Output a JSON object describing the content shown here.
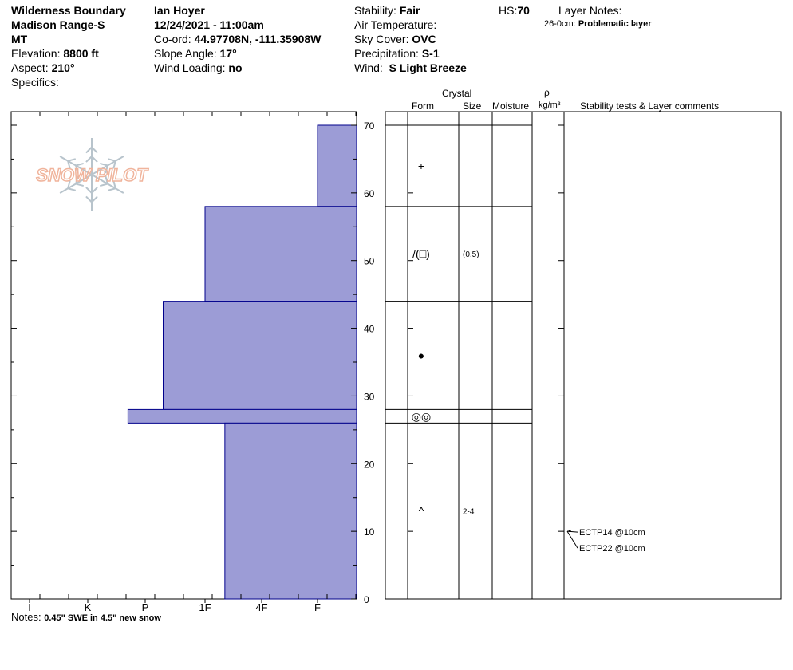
{
  "site": {
    "name": "Wilderness Boundary",
    "range": "Madison Range-S",
    "state": "MT",
    "elevation_label": "Elevation:",
    "elevation": "8800 ft",
    "aspect_label": "Aspect:",
    "aspect": "210°",
    "specifics_label": "Specifics:"
  },
  "observation": {
    "observer": "Ian Hoyer",
    "datetime": "12/24/2021 - 11:00am",
    "coord_label": "Co-ord:",
    "coord": "44.97708N, -111.35908W",
    "slope_label": "Slope Angle:",
    "slope": "17°",
    "wind_loading_label": "Wind Loading:",
    "wind_loading": "no"
  },
  "conditions": {
    "stability_label": "Stability:",
    "stability": "Fair",
    "air_temp_label": "Air Temperature:",
    "sky_label": "Sky Cover:",
    "sky": "OVC",
    "precip_label": "Precipitation:",
    "precip": "S-1",
    "wind_label": "Wind:",
    "wind": "S Light Breeze"
  },
  "hs": {
    "label": "HS:",
    "value": "70"
  },
  "layer_notes": {
    "title": "Layer Notes:",
    "range": "26-0cm:",
    "text": "Problematic layer"
  },
  "column_headers": {
    "crystal": "Crystal",
    "form": "Form",
    "size": "Size",
    "moisture": "Moisture",
    "rho": "ρ",
    "density_unit": "kg/m³",
    "tests": "Stability tests & Layer comments"
  },
  "notes": {
    "label": "Notes:",
    "text": "0.45\" SWE in 4.5\" new snow"
  },
  "logo": {
    "text": "SNOW PILOT"
  },
  "colors": {
    "hardness_fill": "#9c9cd6",
    "hardness_stroke": "#00008b",
    "logo_text": "#f0b49c",
    "logo_flake": "#b8c4cc"
  },
  "chart_data": {
    "type": "bar",
    "y_axis": {
      "unit": "cm",
      "range": [
        0,
        70
      ],
      "ticks": [
        0,
        10,
        20,
        30,
        40,
        50,
        60,
        70
      ]
    },
    "hardness_scale": [
      "I",
      "K",
      "P",
      "1F",
      "4F",
      "F"
    ],
    "layers": [
      {
        "top": 70,
        "bottom": 58,
        "hardness_level": 5.0,
        "form": "+",
        "size": "",
        "form_icon": "precip-particle"
      },
      {
        "top": 58,
        "bottom": 44,
        "hardness_level": 3.0,
        "form": "/(□)",
        "size": "(0.5)",
        "form_icon": "decomposing-to-faceted"
      },
      {
        "top": 44,
        "bottom": 28,
        "hardness_level": 2.3,
        "form": "●",
        "size": "",
        "form_icon": "rounded-grains"
      },
      {
        "top": 28,
        "bottom": 26,
        "hardness_level": 1.7,
        "form": "◎◎",
        "size": "",
        "form_icon": "melt-forms"
      },
      {
        "top": 26,
        "bottom": 0,
        "hardness_level": 3.35,
        "form": "^",
        "size": "2-4",
        "form_icon": "depth-hoar"
      }
    ],
    "stability_tests": [
      {
        "depth": 10,
        "label": "ECTP14 @10cm"
      },
      {
        "depth": 10,
        "label": "ECTP22 @10cm"
      }
    ]
  }
}
